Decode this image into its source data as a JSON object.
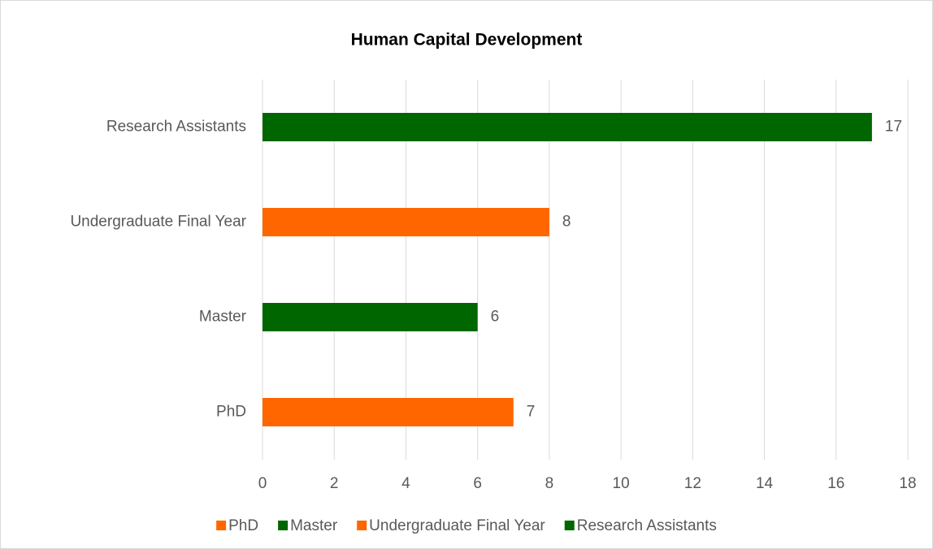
{
  "chart_data": {
    "type": "bar",
    "orientation": "horizontal",
    "title": "Human Capital Development",
    "categories": [
      "PhD",
      "Master",
      "Undergraduate Final Year",
      "Research Assistants"
    ],
    "values": [
      7,
      6,
      8,
      17
    ],
    "colors": [
      "#ff6600",
      "#006600",
      "#ff6600",
      "#006600"
    ],
    "xlim": [
      0,
      18
    ],
    "xticks": [
      0,
      2,
      4,
      6,
      8,
      10,
      12,
      14,
      16,
      18
    ],
    "grid": true,
    "legend": "bottom"
  }
}
